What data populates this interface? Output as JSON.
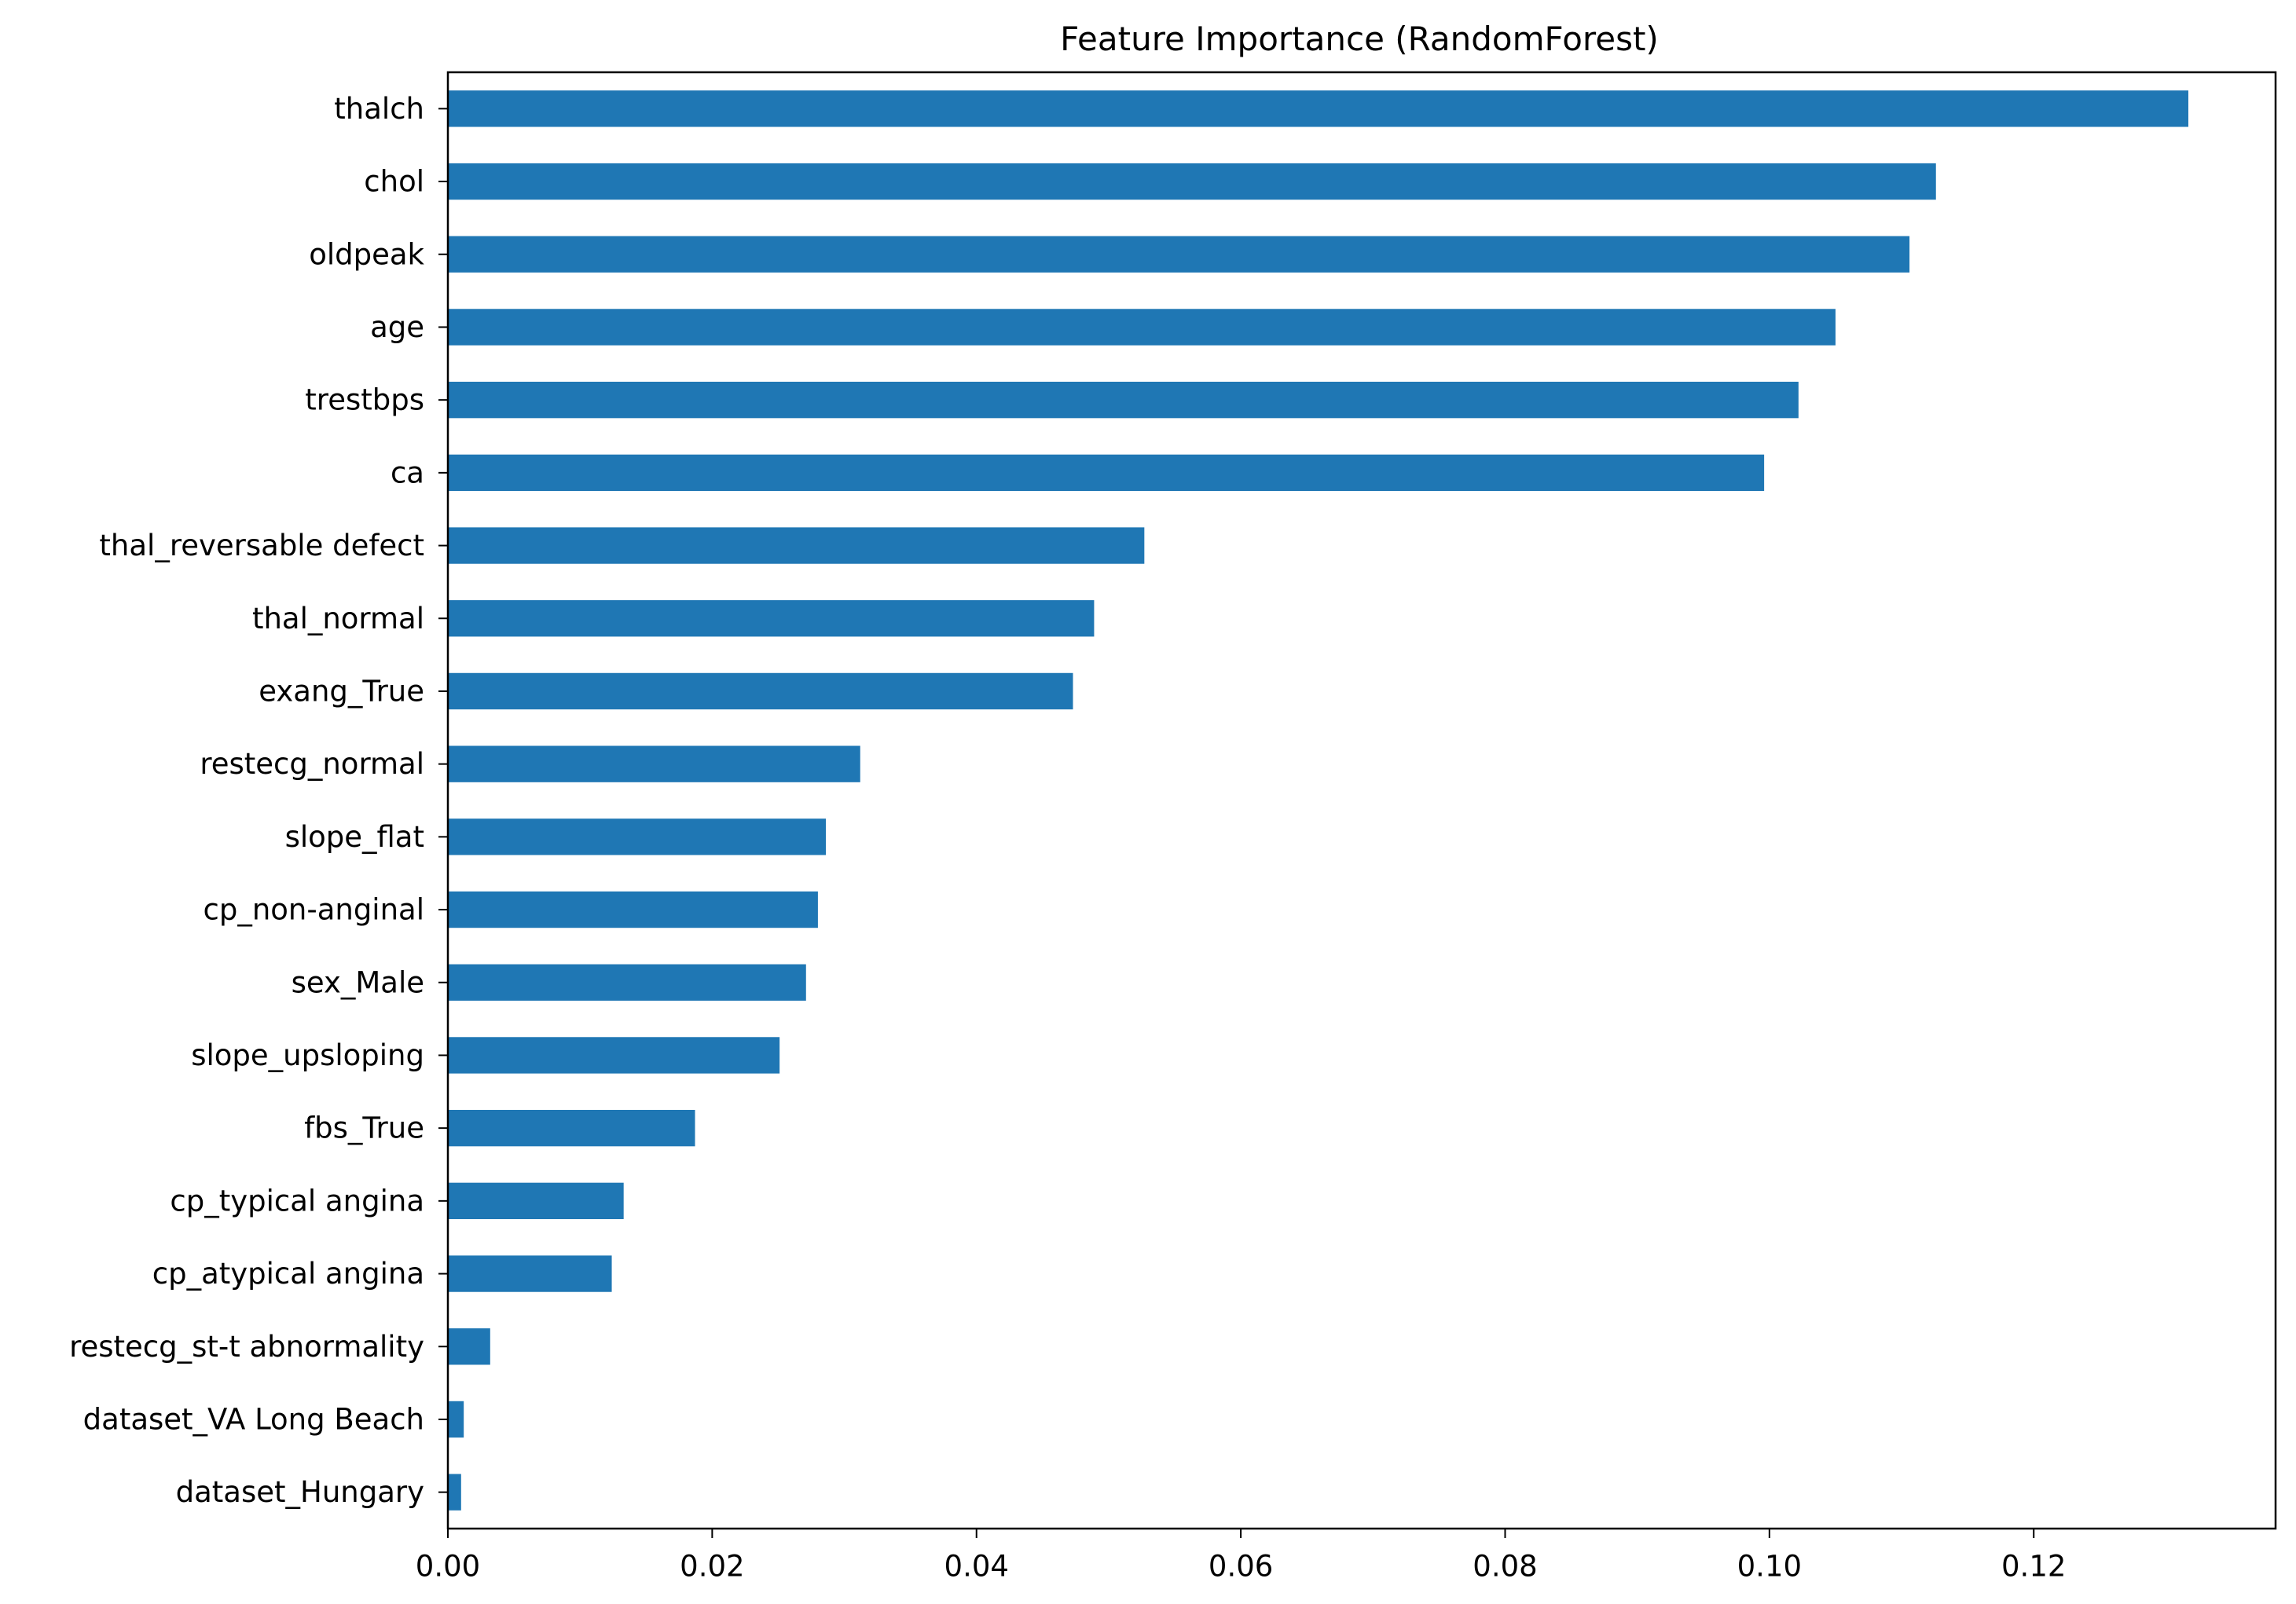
{
  "chart_data": {
    "type": "bar",
    "orientation": "horizontal",
    "title": "Feature Importance (RandomForest)",
    "xlabel": "",
    "ylabel": "",
    "categories": [
      "thalch",
      "chol",
      "oldpeak",
      "age",
      "trestbps",
      "ca",
      "thal_reversable defect",
      "thal_normal",
      "exang_True",
      "restecg_normal",
      "slope_flat",
      "cp_non-anginal",
      "sex_Male",
      "slope_upsloping",
      "fbs_True",
      "cp_typical angina",
      "cp_atypical angina",
      "restecg_st-t abnormality",
      "dataset_VA Long Beach",
      "dataset_Hungary"
    ],
    "values": [
      0.1317,
      0.1126,
      0.1106,
      0.105,
      0.1022,
      0.0996,
      0.0527,
      0.0489,
      0.0473,
      0.0312,
      0.0286,
      0.028,
      0.0271,
      0.0251,
      0.0187,
      0.0133,
      0.0124,
      0.0032,
      0.0012,
      0.001
    ],
    "xlim": [
      0.0,
      0.1383
    ],
    "xticks": [
      0.0,
      0.02,
      0.04,
      0.06,
      0.08,
      0.1,
      0.12
    ],
    "xtick_labels": [
      "0.00",
      "0.02",
      "0.04",
      "0.06",
      "0.08",
      "0.10",
      "0.12"
    ],
    "bar_color": "#1f77b4",
    "grid": false,
    "legend": "none"
  }
}
